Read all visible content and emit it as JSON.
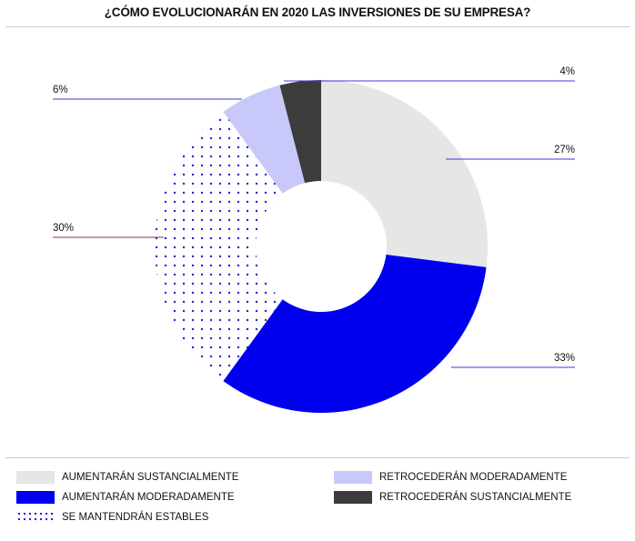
{
  "chart_data": {
    "type": "donut",
    "title": "¿CÓMO EVOLUCIONARÁN EN 2020 LAS INVERSIONES DE SU EMPRESA?",
    "slices": [
      {
        "label": "AUMENTARÁN SUSTANCIALMENTE",
        "value": 27,
        "display": "27%",
        "color": "#e6e6e6",
        "pattern": "solid"
      },
      {
        "label": "AUMENTARÁN MODERADAMENTE",
        "value": 33,
        "display": "33%",
        "color": "#0000ee",
        "pattern": "solid"
      },
      {
        "label": "SE MANTENDRÁN ESTABLES",
        "value": 30,
        "display": "30%",
        "color": "#2222cc",
        "pattern": "dots"
      },
      {
        "label": "RETROCEDERÁN MODERADAMENTE",
        "value": 6,
        "display": "6%",
        "color": "#c8c8fa",
        "pattern": "solid"
      },
      {
        "label": "RETROCEDERÁN SUSTANCIALMENTE",
        "value": 4,
        "display": "4%",
        "color": "#3c3c3c",
        "pattern": "solid"
      }
    ],
    "start_angle": "12 o'clock",
    "direction": "clockwise",
    "legend_position": "bottom"
  }
}
